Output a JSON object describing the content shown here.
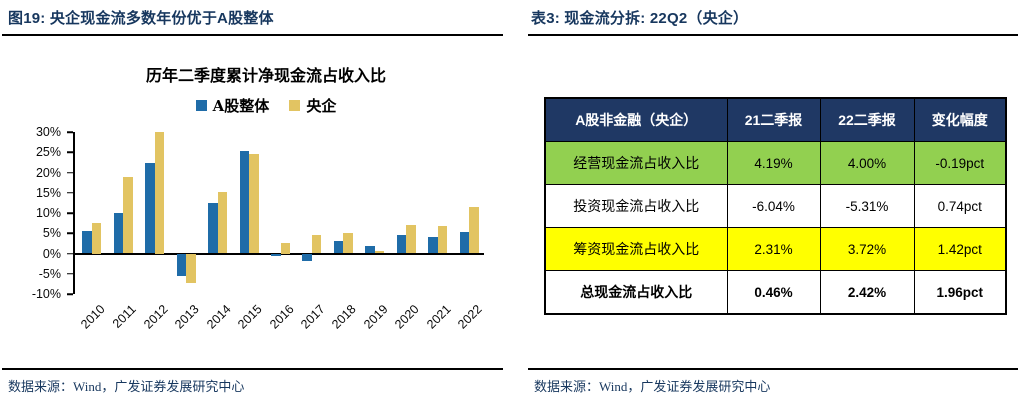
{
  "left_panel": {
    "caption": "图19:  央企现金流多数年份优于A股整体",
    "source": "数据来源：Wind，广发证券发展研究中心"
  },
  "right_panel": {
    "caption": "表3:  现金流分拆: 22Q2（央企）",
    "source": "数据来源：Wind，广发证券发展研究中心"
  },
  "chart_data": {
    "type": "bar",
    "title": "历年二季度累计净现金流占收入比",
    "categories": [
      "2010",
      "2011",
      "2012",
      "2013",
      "2014",
      "2015",
      "2016",
      "2017",
      "2018",
      "2019",
      "2020",
      "2021",
      "2022"
    ],
    "series": [
      {
        "name": "A股整体",
        "color": "#1F6CA8",
        "values": [
          5.5,
          9.9,
          22.4,
          -5.5,
          12.4,
          25.4,
          -0.7,
          -1.8,
          3.1,
          1.9,
          4.6,
          4.0,
          5.2
        ]
      },
      {
        "name": "央企",
        "color": "#E2C462",
        "values": [
          7.5,
          18.8,
          30.0,
          -7.4,
          15.1,
          24.6,
          2.5,
          4.6,
          5.1,
          0.6,
          7.1,
          6.8,
          11.5
        ]
      }
    ],
    "ylim": [
      -10,
      30
    ],
    "ytick_step": 5,
    "ytick_labels": [
      "30%",
      "25%",
      "20%",
      "15%",
      "10%",
      "5%",
      "0%",
      "-5%",
      "-10%"
    ],
    "ylabel": "",
    "xlabel": "",
    "grid": false,
    "legend_position": "top"
  },
  "table": {
    "columns": [
      "A股非金融（央企）",
      "21二季报",
      "22二季报",
      "变化幅度"
    ],
    "rows": [
      {
        "cells": [
          "经营现金流占收入比",
          "4.19%",
          "4.00%",
          "-0.19pct"
        ],
        "bg": "#92D050",
        "bold": false
      },
      {
        "cells": [
          "投资现金流占收入比",
          "-6.04%",
          "-5.31%",
          "0.74pct"
        ],
        "bg": "#FFFFFF",
        "bold": false
      },
      {
        "cells": [
          "筹资现金流占收入比",
          "2.31%",
          "3.72%",
          "1.42pct"
        ],
        "bg": "#FFFF00",
        "bold": false
      },
      {
        "cells": [
          "总现金流占收入比",
          "0.46%",
          "2.42%",
          "1.96pct"
        ],
        "bg": "#FFFFFF",
        "bold": true
      }
    ]
  },
  "colors": {
    "accent_navy": "#17375E",
    "table_header_bg": "#1F3864",
    "bar_blue": "#1F6CA8",
    "bar_gold": "#E2C462",
    "row_green": "#92D050",
    "row_yellow": "#FFFF00",
    "rule_line": "#000000"
  }
}
